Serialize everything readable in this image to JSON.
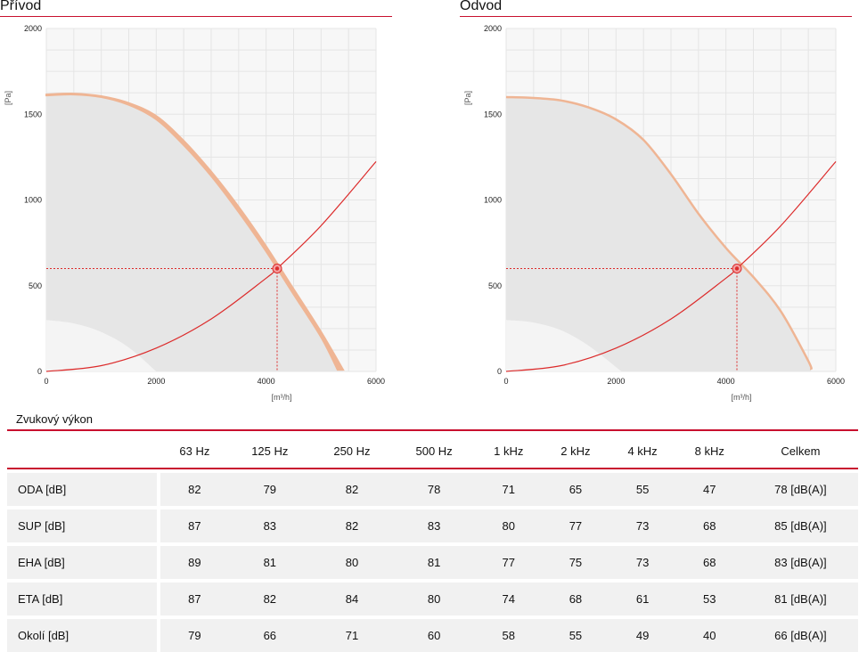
{
  "chart_data": [
    {
      "type": "line",
      "title": "Přívod",
      "xlabel": "[m³/h]",
      "ylabel": "[Pa]",
      "xlim": [
        0,
        6000
      ],
      "ylim": [
        0,
        2000
      ],
      "xticks": [
        0,
        2000,
        4000,
        6000
      ],
      "yticks": [
        0,
        500,
        1000,
        1500,
        2000
      ],
      "grid": true,
      "series": [
        {
          "role": "fan-curve-max",
          "x": [
            0,
            500,
            1000,
            1500,
            2000,
            2500,
            3000,
            3500,
            4000,
            4500,
            5000,
            5300
          ],
          "y": [
            1610,
            1615,
            1600,
            1555,
            1470,
            1320,
            1140,
            930,
            700,
            450,
            200,
            10
          ]
        },
        {
          "role": "fan-curve-band",
          "x": [
            0,
            500,
            1000,
            1500,
            2000,
            2500,
            3000,
            3500,
            4000,
            4500,
            5000,
            5400
          ],
          "y": [
            1615,
            1620,
            1605,
            1565,
            1490,
            1345,
            1165,
            960,
            730,
            480,
            230,
            10
          ]
        },
        {
          "role": "min-curve",
          "x": [
            0,
            500,
            1000,
            1500,
            2000
          ],
          "y": [
            300,
            280,
            230,
            140,
            0
          ]
        },
        {
          "role": "system-curve",
          "x": [
            0,
            1000,
            2000,
            3000,
            4000,
            4200,
            5000,
            6000
          ],
          "y": [
            0,
            34,
            136,
            306,
            544,
            600,
            850,
            1224
          ]
        }
      ],
      "operating_point": {
        "x": 4200,
        "y": 600
      },
      "colors": {
        "band": "#efb594",
        "system": "#dc2b2b",
        "area": "#e6e6e6",
        "min_area": "#f4f4f4"
      }
    },
    {
      "type": "line",
      "title": "Odvod",
      "xlabel": "[m³/h]",
      "ylabel": "[Pa]",
      "xlim": [
        0,
        6000
      ],
      "ylim": [
        0,
        2000
      ],
      "xticks": [
        0,
        2000,
        4000,
        6000
      ],
      "yticks": [
        0,
        500,
        1000,
        1500,
        2000
      ],
      "grid": true,
      "series": [
        {
          "role": "fan-curve-max",
          "x": [
            0,
            500,
            1000,
            1500,
            2000,
            2500,
            3000,
            3500,
            4000,
            4500,
            5000,
            5500,
            5550
          ],
          "y": [
            1600,
            1595,
            1580,
            1540,
            1470,
            1350,
            1150,
            920,
            720,
            550,
            350,
            60,
            10
          ]
        },
        {
          "role": "min-curve",
          "x": [
            0,
            500,
            1000,
            1500,
            2100
          ],
          "y": [
            300,
            285,
            240,
            150,
            0
          ]
        },
        {
          "role": "system-curve",
          "x": [
            0,
            1000,
            2000,
            3000,
            4000,
            4200,
            5000,
            6000
          ],
          "y": [
            0,
            34,
            136,
            306,
            544,
            600,
            850,
            1224
          ]
        }
      ],
      "operating_point": {
        "x": 4200,
        "y": 600
      },
      "colors": {
        "band": "#efb594",
        "system": "#dc2b2b",
        "area": "#e6e6e6",
        "min_area": "#f4f4f4"
      }
    }
  ],
  "sound": {
    "title": "Zvukový výkon",
    "headers": [
      "63 Hz",
      "125 Hz",
      "250 Hz",
      "500 Hz",
      "1 kHz",
      "2 kHz",
      "4 kHz",
      "8 kHz",
      "Celkem"
    ],
    "rows": [
      {
        "label": "ODA [dB]",
        "values": [
          "82",
          "79",
          "82",
          "78",
          "71",
          "65",
          "55",
          "47",
          "78 [dB(A)]"
        ]
      },
      {
        "label": "SUP [dB]",
        "values": [
          "87",
          "83",
          "82",
          "83",
          "80",
          "77",
          "73",
          "68",
          "85 [dB(A)]"
        ]
      },
      {
        "label": "EHA [dB]",
        "values": [
          "89",
          "81",
          "80",
          "81",
          "77",
          "75",
          "73",
          "68",
          "83 [dB(A)]"
        ]
      },
      {
        "label": "ETA [dB]",
        "values": [
          "87",
          "82",
          "84",
          "80",
          "74",
          "68",
          "61",
          "53",
          "81 [dB(A)]"
        ]
      },
      {
        "label": "Okolí [dB]",
        "values": [
          "79",
          "66",
          "71",
          "60",
          "58",
          "55",
          "49",
          "40",
          "66 [dB(A)]"
        ]
      }
    ]
  }
}
